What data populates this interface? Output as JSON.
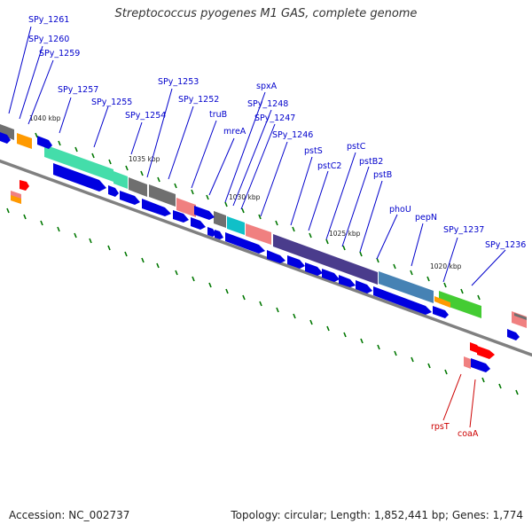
{
  "title": "Streptococcus pyogenes M1 GAS, complete genome",
  "footer": {
    "accession": "Accession: NC_002737",
    "info": "Topology: circular; Length: 1,852,441 bp; Genes: 1,774"
  },
  "colors": {
    "cds_blue": "#0000e0",
    "backbone": "#808080",
    "rna_red": "#ff0000",
    "gene_label": "#0000cc",
    "rna_label": "#cc0000",
    "tick_green": "#007700"
  },
  "tick_labels": [
    "1040 kbp",
    "1035 kbp",
    "1030 kbp",
    "1025 kbp",
    "1020 kbp"
  ],
  "gene_labels": [
    "SPy_1261",
    "SPy_1260",
    "SPy_1259",
    "SPy_1257",
    "SPy_1255",
    "SPy_1254",
    "SPy_1253",
    "SPy_1252",
    "truB",
    "mreA",
    "spxA",
    "SPy_1248",
    "SPy_1247",
    "SPy_1246",
    "pstS",
    "pstC2",
    "pstC",
    "pstB2",
    "pstB",
    "phoU",
    "pepN",
    "SPy_1237",
    "SPy_1236"
  ],
  "rna_labels": [
    "rpsT",
    "coaA"
  ]
}
